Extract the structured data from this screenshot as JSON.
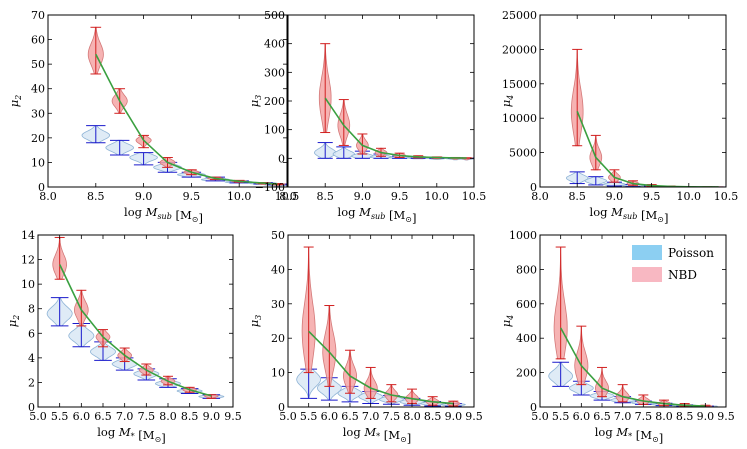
{
  "colors": {
    "nbd_fill": "#f4a6a6",
    "nbd_edge": "#d47878",
    "nbd_whisker": "#d22020",
    "poisson_fill": "#d9e8f5",
    "poisson_edge": "#8fb4d6",
    "poisson_whisker": "#1a1acc",
    "trend_line": "#3aa040",
    "legend_poisson": "#8ccff2",
    "legend_nbd": "#f8b8c2"
  },
  "legend": {
    "placement": "top-right of bottom-right panel",
    "entries": [
      {
        "key": "poisson",
        "label": "Poisson"
      },
      {
        "key": "nbd",
        "label": "NBD"
      }
    ]
  },
  "chart_data": [
    {
      "type": "violin",
      "id": "p1",
      "xlabel_main": "log M",
      "xlabel_sub": "sub",
      "xlabel_unit": "[M",
      "xlabel_unit_sub": "⊙",
      "xlabel_unit_close": "]",
      "ylabel_main": "μ",
      "ylabel_sub": "2",
      "xlim": [
        8.0,
        10.5
      ],
      "ylim": [
        0,
        70
      ],
      "xticks": [
        8.0,
        8.5,
        9.0,
        9.5,
        10.0,
        10.5
      ],
      "xtick_labels": [
        "8.0",
        "8.5",
        "9.0",
        "9.5",
        "10.0",
        "10.5"
      ],
      "yticks": [
        0,
        10,
        20,
        30,
        40,
        50,
        60,
        70
      ],
      "ytick_labels": [
        "0",
        "10",
        "20",
        "30",
        "40",
        "50",
        "60",
        "70"
      ],
      "x": [
        8.5,
        8.75,
        9.0,
        9.25,
        9.5,
        9.75,
        10.0,
        10.25,
        10.4
      ],
      "nbd": {
        "median": [
          54,
          35,
          19,
          10,
          6,
          3.5,
          2.3,
          1.6,
          1.2
        ],
        "lo": [
          46,
          30,
          16,
          8,
          5,
          3,
          2,
          1.4,
          1
        ],
        "hi": [
          65,
          40,
          21,
          12,
          7,
          4,
          2.7,
          1.8,
          1.4
        ]
      },
      "poisson": {
        "median": [
          21,
          16,
          12,
          8,
          5,
          3,
          2,
          1.5,
          1
        ],
        "lo": [
          18,
          13,
          9,
          6,
          4,
          2.5,
          1.7,
          1.2,
          0.9
        ],
        "hi": [
          25,
          19,
          14,
          10,
          6,
          4,
          2.5,
          1.8,
          1.2
        ]
      },
      "trend": [
        54,
        35,
        19,
        10,
        6,
        3.5,
        2.3,
        1.6,
        1.2
      ]
    },
    {
      "type": "violin",
      "id": "p2",
      "xlabel_main": "log M",
      "xlabel_sub": "sub",
      "xlabel_unit": "[M",
      "xlabel_unit_sub": "⊙",
      "xlabel_unit_close": "]",
      "ylabel_main": "μ",
      "ylabel_sub": "3",
      "xlim": [
        8.0,
        10.5
      ],
      "ylim": [
        -100,
        500
      ],
      "xticks": [
        8.0,
        8.5,
        9.0,
        9.5,
        10.0,
        10.5
      ],
      "xtick_labels": [
        "8.0",
        "8.5",
        "9.0",
        "9.5",
        "10.0",
        "10.5"
      ],
      "yticks": [
        -100,
        0,
        100,
        200,
        300,
        400,
        500
      ],
      "ytick_labels": [
        "−100",
        "0",
        "100",
        "200",
        "300",
        "400",
        "500"
      ],
      "x": [
        8.5,
        8.75,
        9.0,
        9.25,
        9.5,
        9.75,
        10.0,
        10.25,
        10.4
      ],
      "nbd": {
        "median": [
          210,
          115,
          45,
          20,
          10,
          5,
          3,
          1.5,
          1
        ],
        "lo": [
          90,
          45,
          15,
          7,
          3,
          1.5,
          1,
          0.5,
          0.3
        ],
        "hi": [
          400,
          205,
          85,
          35,
          18,
          9,
          5,
          3,
          2
        ]
      },
      "poisson": {
        "median": [
          20,
          15,
          8,
          5,
          3,
          2,
          1,
          0.5,
          0.3
        ],
        "lo": [
          0,
          0,
          0,
          0,
          0,
          0,
          0,
          0,
          0
        ],
        "hi": [
          55,
          40,
          25,
          15,
          8,
          5,
          3,
          2,
          1
        ]
      },
      "trend": [
        210,
        115,
        45,
        20,
        10,
        5,
        3,
        1.5,
        1
      ]
    },
    {
      "type": "violin",
      "id": "p3",
      "xlabel_main": "log M",
      "xlabel_sub": "sub",
      "xlabel_unit": "[M",
      "xlabel_unit_sub": "⊙",
      "xlabel_unit_close": "]",
      "ylabel_main": "μ",
      "ylabel_sub": "4",
      "xlim": [
        8.0,
        10.5
      ],
      "ylim": [
        0,
        25000
      ],
      "xticks": [
        8.0,
        8.5,
        9.0,
        9.5,
        10.0,
        10.5
      ],
      "xtick_labels": [
        "8.0",
        "8.5",
        "9.0",
        "9.5",
        "10.0",
        "10.5"
      ],
      "yticks": [
        0,
        5000,
        10000,
        15000,
        20000,
        25000
      ],
      "ytick_labels": [
        "0",
        "5000",
        "10000",
        "15000",
        "20000",
        "25000"
      ],
      "x": [
        8.5,
        8.75,
        9.0,
        9.25,
        9.5,
        9.75,
        10.0,
        10.25,
        10.4
      ],
      "nbd": {
        "median": [
          11000,
          4300,
          1400,
          500,
          200,
          80,
          30,
          15,
          8
        ],
        "lo": [
          6000,
          2500,
          700,
          250,
          100,
          40,
          15,
          8,
          4
        ],
        "hi": [
          20000,
          7500,
          2500,
          900,
          350,
          140,
          60,
          30,
          15
        ]
      },
      "poisson": {
        "median": [
          1300,
          900,
          400,
          200,
          80,
          30,
          15,
          8,
          4
        ],
        "lo": [
          500,
          300,
          150,
          60,
          30,
          10,
          5,
          3,
          2
        ],
        "hi": [
          2200,
          1500,
          700,
          350,
          150,
          60,
          30,
          15,
          8
        ]
      },
      "trend": [
        11000,
        4300,
        1400,
        500,
        200,
        80,
        30,
        15,
        8
      ]
    },
    {
      "type": "violin",
      "id": "p4",
      "xlabel_main": "log M",
      "xlabel_sub": "*",
      "xlabel_unit": "[M",
      "xlabel_unit_sub": "⊙",
      "xlabel_unit_close": "]",
      "ylabel_main": "μ",
      "ylabel_sub": "2",
      "xlim": [
        5.0,
        9.5
      ],
      "ylim": [
        0,
        14
      ],
      "xticks": [
        5.0,
        5.5,
        6.0,
        6.5,
        7.0,
        7.5,
        8.0,
        8.5,
        9.0,
        9.5
      ],
      "xtick_labels": [
        "5.0",
        "5.5",
        "6.0",
        "6.5",
        "7.0",
        "7.5",
        "8.0",
        "8.5",
        "9.0",
        "9.5"
      ],
      "yticks": [
        0,
        2,
        4,
        6,
        8,
        10,
        12,
        14
      ],
      "ytick_labels": [
        "0",
        "2",
        "4",
        "6",
        "8",
        "10",
        "12",
        "14"
      ],
      "x": [
        5.5,
        6.0,
        6.5,
        7.0,
        7.5,
        8.0,
        8.5,
        9.0
      ],
      "nbd": {
        "median": [
          11.6,
          7.9,
          5.7,
          4.2,
          3.0,
          2.1,
          1.4,
          0.9
        ],
        "lo": [
          10.4,
          6.6,
          4.9,
          3.7,
          2.6,
          1.8,
          1.2,
          0.7
        ],
        "hi": [
          13.8,
          9.5,
          6.3,
          4.8,
          3.5,
          2.5,
          1.6,
          1.0
        ]
      },
      "poisson": {
        "median": [
          7.6,
          5.8,
          4.5,
          3.5,
          2.7,
          1.9,
          1.3,
          0.85
        ],
        "lo": [
          6.6,
          4.9,
          3.8,
          3.0,
          2.2,
          1.6,
          1.1,
          0.7
        ],
        "hi": [
          8.9,
          6.8,
          5.3,
          4.0,
          3.1,
          2.3,
          1.5,
          1.0
        ]
      },
      "trend": [
        11.6,
        7.9,
        5.7,
        4.2,
        3.0,
        2.1,
        1.4,
        0.9
      ]
    },
    {
      "type": "violin",
      "id": "p5",
      "xlabel_main": "log M",
      "xlabel_sub": "*",
      "xlabel_unit": "[M",
      "xlabel_unit_sub": "⊙",
      "xlabel_unit_close": "]",
      "ylabel_main": "μ",
      "ylabel_sub": "3",
      "xlim": [
        5.0,
        9.5
      ],
      "ylim": [
        0,
        50
      ],
      "xticks": [
        5.0,
        5.5,
        6.0,
        6.5,
        7.0,
        7.5,
        8.0,
        8.5,
        9.0,
        9.5
      ],
      "xtick_labels": [
        "5.0",
        "5.5",
        "6.0",
        "6.5",
        "7.0",
        "7.5",
        "8.0",
        "8.5",
        "9.0",
        "9.5"
      ],
      "yticks": [
        0,
        10,
        20,
        30,
        40,
        50
      ],
      "ytick_labels": [
        "0",
        "10",
        "20",
        "30",
        "40",
        "50"
      ],
      "x": [
        5.5,
        6.0,
        6.5,
        7.0,
        7.5,
        8.0,
        8.5,
        9.0
      ],
      "nbd": {
        "median": [
          22,
          16,
          9,
          5.5,
          3.5,
          2.4,
          1.5,
          1.0
        ],
        "lo": [
          10,
          6,
          4,
          2.5,
          1.5,
          1.0,
          0.5,
          0.3
        ],
        "hi": [
          46.5,
          29.5,
          16.5,
          11.5,
          6.5,
          5.2,
          3.0,
          1.7
        ]
      },
      "poisson": {
        "median": [
          8,
          5.5,
          4,
          3,
          2.2,
          1.5,
          1.0,
          0.7
        ],
        "lo": [
          2.5,
          2,
          1.5,
          1.0,
          0.8,
          0.5,
          0.3,
          0.2
        ],
        "hi": [
          11,
          8.5,
          6,
          4.5,
          3.3,
          2.5,
          1.6,
          1.0
        ]
      },
      "trend": [
        22,
        16,
        9,
        5.5,
        3.5,
        2.4,
        1.5,
        1.0
      ]
    },
    {
      "type": "violin",
      "id": "p6",
      "xlabel_main": "log M",
      "xlabel_sub": "*",
      "xlabel_unit": "[M",
      "xlabel_unit_sub": "⊙",
      "xlabel_unit_close": "]",
      "ylabel_main": "μ",
      "ylabel_sub": "4",
      "xlim": [
        5.0,
        9.5
      ],
      "ylim": [
        0,
        1000
      ],
      "xticks": [
        5.0,
        5.5,
        6.0,
        6.5,
        7.0,
        7.5,
        8.0,
        8.5,
        9.0,
        9.5
      ],
      "xtick_labels": [
        "5.0",
        "5.5",
        "6.0",
        "6.5",
        "7.0",
        "7.5",
        "8.0",
        "8.5",
        "9.0",
        "9.5"
      ],
      "yticks": [
        0,
        200,
        400,
        600,
        800,
        1000
      ],
      "ytick_labels": [
        "0",
        "200",
        "400",
        "600",
        "800",
        "1000"
      ],
      "x": [
        5.5,
        6.0,
        6.5,
        7.0,
        7.5,
        8.0,
        8.5,
        9.0
      ],
      "nbd": {
        "median": [
          460,
          240,
          110,
          60,
          35,
          20,
          10,
          5
        ],
        "lo": [
          280,
          130,
          60,
          30,
          15,
          8,
          4,
          2
        ],
        "hi": [
          930,
          470,
          230,
          130,
          70,
          40,
          20,
          10
        ]
      },
      "poisson": {
        "median": [
          180,
          110,
          65,
          40,
          25,
          15,
          8,
          4
        ],
        "lo": [
          120,
          70,
          40,
          25,
          15,
          8,
          4,
          2
        ],
        "hi": [
          260,
          150,
          90,
          60,
          35,
          22,
          12,
          6
        ]
      },
      "trend": [
        460,
        240,
        110,
        60,
        35,
        20,
        10,
        5
      ]
    }
  ]
}
